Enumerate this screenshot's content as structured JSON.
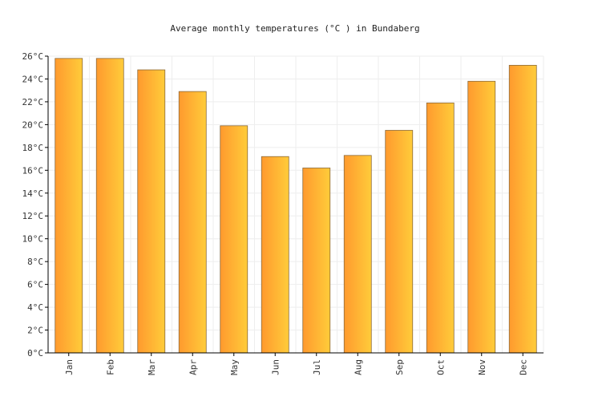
{
  "chart_data": {
    "type": "bar",
    "title": "Average monthly temperatures (°C ) in Bundaberg",
    "xlabel": "",
    "ylabel": "",
    "categories": [
      "Jan",
      "Feb",
      "Mar",
      "Apr",
      "May",
      "Jun",
      "Jul",
      "Aug",
      "Sep",
      "Oct",
      "Nov",
      "Dec"
    ],
    "values": [
      25.8,
      25.8,
      24.8,
      22.9,
      19.9,
      17.2,
      16.2,
      17.3,
      19.5,
      21.9,
      23.8,
      25.2
    ],
    "ylim": [
      0,
      26
    ],
    "yticks": [
      0,
      2,
      4,
      6,
      8,
      10,
      12,
      14,
      16,
      18,
      20,
      22,
      24,
      26
    ],
    "ytick_suffix": "°C",
    "grid": true,
    "colors": {
      "bar_left": "#ff9a2e",
      "bar_right": "#ffcc3a",
      "bar_stroke": "#8a6a3a",
      "grid": "#eeeeee",
      "axis": "#000000"
    }
  }
}
